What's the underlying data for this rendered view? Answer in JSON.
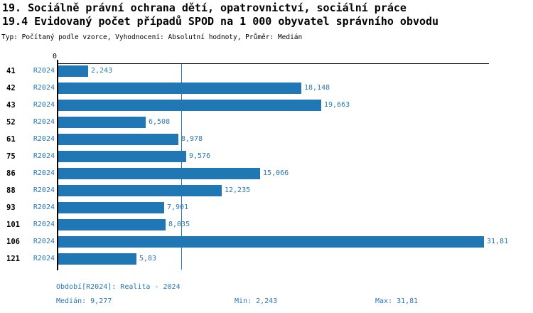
{
  "header": {
    "title_line1": "19. Sociálně právní ochrana dětí, opatrovnictví, sociální práce",
    "title_line2": "19.4 Evidovaný počet případů SPOD na 1 000 obyvatel správního obvodu",
    "subtitle": "Typ: Počítaný podle vzorce, Vyhodnocení: Absolutní hodnoty, Průměr: Medián"
  },
  "chart_data": {
    "type": "bar",
    "orientation": "horizontal",
    "title": "19.4 Evidovaný počet případů SPOD na 1 000 obyvatel správního obvodu",
    "categories": [
      "41",
      "42",
      "43",
      "52",
      "61",
      "75",
      "86",
      "88",
      "93",
      "101",
      "106",
      "121"
    ],
    "series": [
      {
        "name": "R2024",
        "values": [
          2.243,
          18.148,
          19.663,
          6.508,
          8.978,
          9.576,
          15.066,
          12.235,
          7.901,
          8.035,
          31.81,
          5.83
        ],
        "value_labels": [
          "2,243",
          "18,148",
          "19,663",
          "6,508",
          "8,978",
          "9,576",
          "15,066",
          "12,235",
          "7,901",
          "8,035",
          "31,81",
          "5,83"
        ]
      }
    ],
    "series_row_label": "R2024",
    "axis": {
      "zero_tick_label": "0",
      "xlim": [
        0,
        32.2
      ],
      "grid": false
    },
    "median_line_value": 9.277,
    "stats": {
      "median": 9.277,
      "min": 2.243,
      "max": 31.81
    },
    "legend_position": "none"
  },
  "footer": {
    "period_label": "Období[R2024]: Realita - 2024",
    "median_label": "Medián: 9,277",
    "min_label": "Min: 2,243",
    "max_label": "Max: 31,81"
  },
  "colors": {
    "bar_fill": "#2177b4",
    "blue_text": "#2878b8",
    "axis": "#000000",
    "background": "#ffffff"
  }
}
